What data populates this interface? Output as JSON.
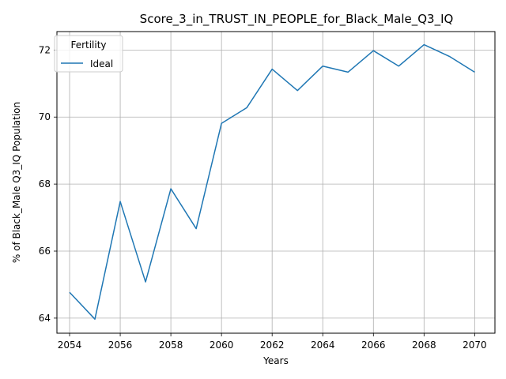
{
  "chart_data": {
    "type": "line",
    "title": "Score_3_in_TRUST_IN_PEOPLE_for_Black_Male_Q3_IQ",
    "xlabel": "Years",
    "ylabel": "% of Black_Male Q3_IQ Population",
    "xlim": [
      2053.5,
      2070.8
    ],
    "ylim": [
      63.55,
      72.55
    ],
    "xticks": [
      2054,
      2056,
      2058,
      2060,
      2062,
      2064,
      2066,
      2068,
      2070
    ],
    "yticks": [
      64,
      66,
      68,
      70,
      72
    ],
    "grid": true,
    "legend": {
      "title": "Fertility",
      "placement": "top-left"
    },
    "series": [
      {
        "name": "Ideal",
        "color": "#1f77b4",
        "x": [
          2054,
          2055,
          2056,
          2057,
          2058,
          2059,
          2060,
          2061,
          2062,
          2063,
          2064,
          2065,
          2066,
          2067,
          2068,
          2069,
          2070
        ],
        "y": [
          64.77,
          63.97,
          67.48,
          65.08,
          67.86,
          66.67,
          69.81,
          70.28,
          71.43,
          70.79,
          71.52,
          71.34,
          71.98,
          71.52,
          72.16,
          71.81,
          71.34
        ]
      }
    ]
  }
}
